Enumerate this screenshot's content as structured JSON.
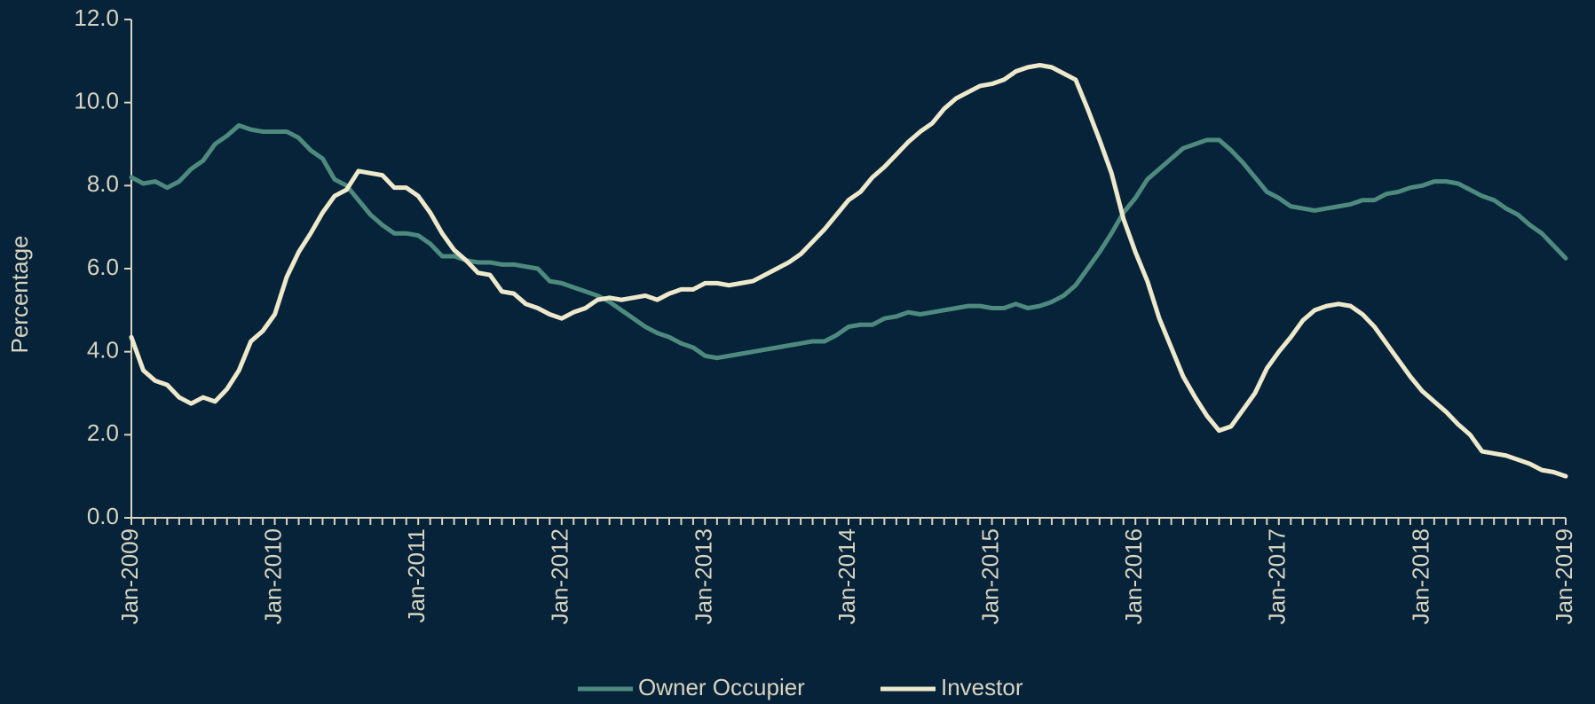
{
  "chart_data": {
    "type": "line",
    "y_label": "Percentage",
    "categories": [
      "Jan-2009",
      null,
      null,
      null,
      null,
      null,
      null,
      null,
      null,
      null,
      null,
      null,
      "Jan-2010",
      null,
      null,
      null,
      null,
      null,
      null,
      null,
      null,
      null,
      null,
      null,
      "Jan-2011",
      null,
      null,
      null,
      null,
      null,
      null,
      null,
      null,
      null,
      null,
      null,
      "Jan-2012",
      null,
      null,
      null,
      null,
      null,
      null,
      null,
      null,
      null,
      null,
      null,
      "Jan-2013",
      null,
      null,
      null,
      null,
      null,
      null,
      null,
      null,
      null,
      null,
      null,
      "Jan-2014",
      null,
      null,
      null,
      null,
      null,
      null,
      null,
      null,
      null,
      null,
      null,
      "Jan-2015",
      null,
      null,
      null,
      null,
      null,
      null,
      null,
      null,
      null,
      null,
      null,
      "Jan-2016",
      null,
      null,
      null,
      null,
      null,
      null,
      null,
      null,
      null,
      null,
      null,
      "Jan-2017",
      null,
      null,
      null,
      null,
      null,
      null,
      null,
      null,
      null,
      null,
      null,
      "Jan-2018",
      null,
      null,
      null,
      null,
      null,
      null,
      null,
      null,
      null,
      null,
      null,
      "Jan-2019"
    ],
    "series": [
      {
        "name": "Owner Occupier",
        "color": "#4e8a7e",
        "values": [
          8.2,
          8.05,
          8.1,
          7.95,
          8.1,
          8.4,
          8.6,
          9.0,
          9.2,
          9.45,
          9.35,
          9.3,
          9.3,
          9.3,
          9.15,
          8.85,
          8.65,
          8.15,
          8.0,
          7.65,
          7.3,
          7.05,
          6.85,
          6.85,
          6.8,
          6.6,
          6.3,
          6.3,
          6.2,
          6.15,
          6.15,
          6.1,
          6.1,
          6.05,
          6.0,
          5.7,
          5.65,
          5.55,
          5.45,
          5.35,
          5.2,
          5.0,
          4.8,
          4.6,
          4.45,
          4.35,
          4.2,
          4.1,
          3.9,
          3.85,
          3.9,
          3.95,
          4.0,
          4.05,
          4.1,
          4.15,
          4.2,
          4.25,
          4.25,
          4.4,
          4.6,
          4.65,
          4.65,
          4.8,
          4.85,
          4.95,
          4.9,
          4.95,
          5.0,
          5.05,
          5.1,
          5.1,
          5.05,
          5.05,
          5.15,
          5.05,
          5.1,
          5.2,
          5.35,
          5.6,
          6.0,
          6.4,
          6.85,
          7.35,
          7.7,
          8.15,
          8.4,
          8.65,
          8.9,
          9.0,
          9.1,
          9.1,
          8.85,
          8.55,
          8.2,
          7.85,
          7.7,
          7.5,
          7.45,
          7.4,
          7.45,
          7.5,
          7.55,
          7.65,
          7.65,
          7.8,
          7.85,
          7.95,
          8.0,
          8.1,
          8.1,
          8.05,
          7.9,
          7.75,
          7.65,
          7.45,
          7.3,
          7.05,
          6.85,
          6.55,
          6.25
        ]
      },
      {
        "name": "Investor",
        "color": "#efe9cc",
        "values": [
          4.35,
          3.55,
          3.3,
          3.2,
          2.9,
          2.75,
          2.9,
          2.8,
          3.1,
          3.55,
          4.25,
          4.5,
          4.9,
          5.8,
          6.4,
          6.85,
          7.35,
          7.75,
          7.9,
          8.35,
          8.3,
          8.25,
          7.95,
          7.95,
          7.75,
          7.35,
          6.85,
          6.45,
          6.2,
          5.9,
          5.85,
          5.45,
          5.4,
          5.15,
          5.05,
          4.9,
          4.8,
          4.95,
          5.05,
          5.25,
          5.3,
          5.25,
          5.3,
          5.35,
          5.25,
          5.4,
          5.5,
          5.5,
          5.65,
          5.65,
          5.6,
          5.65,
          5.7,
          5.85,
          6.0,
          6.15,
          6.35,
          6.65,
          6.95,
          7.3,
          7.65,
          7.85,
          8.2,
          8.45,
          8.75,
          9.05,
          9.3,
          9.5,
          9.85,
          10.1,
          10.25,
          10.4,
          10.45,
          10.55,
          10.75,
          10.85,
          10.9,
          10.85,
          10.7,
          10.55,
          9.85,
          9.1,
          8.3,
          7.2,
          6.4,
          5.7,
          4.8,
          4.1,
          3.4,
          2.9,
          2.45,
          2.1,
          2.2,
          2.6,
          3.0,
          3.6,
          4.0,
          4.35,
          4.75,
          5.0,
          5.1,
          5.15,
          5.1,
          4.9,
          4.6,
          4.2,
          3.8,
          3.4,
          3.05,
          2.8,
          2.55,
          2.25,
          2.0,
          1.6,
          1.55,
          1.5,
          1.4,
          1.3,
          1.15,
          1.1,
          1.0
        ]
      }
    ],
    "ylim": [
      0,
      12
    ],
    "yticks": [
      {
        "value": 0,
        "label": "0.0"
      },
      {
        "value": 2,
        "label": "2.0"
      },
      {
        "value": 4,
        "label": "4.0"
      },
      {
        "value": 6,
        "label": "6.0"
      },
      {
        "value": 8,
        "label": "8.0"
      },
      {
        "value": 10,
        "label": "10.0"
      },
      {
        "value": 12,
        "label": "12.0"
      }
    ],
    "grid": false,
    "legend": "bottom"
  }
}
